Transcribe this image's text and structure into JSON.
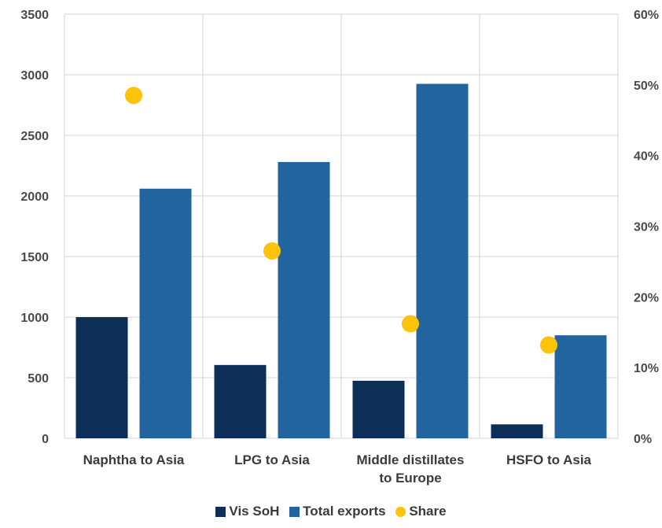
{
  "chart_data": {
    "type": "bar",
    "categories": [
      [
        "Naphtha to Asia"
      ],
      [
        "LPG to Asia"
      ],
      [
        "Middle distillates",
        "to Europe"
      ],
      [
        "HSFO to Asia"
      ]
    ],
    "series": [
      {
        "name": "Vis SoH",
        "axis": "left",
        "kind": "bar",
        "color": "#0d2f57",
        "values": [
          1000,
          605,
          475,
          115
        ]
      },
      {
        "name": "Total exports",
        "axis": "left",
        "kind": "bar",
        "color": "#22649e",
        "values": [
          2060,
          2280,
          2925,
          850
        ]
      },
      {
        "name": "Share",
        "axis": "right",
        "kind": "scatter",
        "color": "#fcc30b",
        "values": [
          0.485,
          0.265,
          0.162,
          0.132
        ]
      }
    ],
    "y_left": {
      "min": 0,
      "max": 3500,
      "ticks": [
        "0",
        "500",
        "1000",
        "1500",
        "2000",
        "2500",
        "3000",
        "3500"
      ]
    },
    "y_right": {
      "min": 0,
      "max": 0.6,
      "ticks": [
        "0%",
        "10%",
        "20%",
        "30%",
        "40%",
        "50%",
        "60%"
      ]
    },
    "grid": true,
    "legend_position": "bottom",
    "title": "",
    "xlabel": "",
    "ylabel": ""
  },
  "legend": {
    "items": [
      "Vis SoH",
      "Total exports",
      "Share"
    ]
  }
}
